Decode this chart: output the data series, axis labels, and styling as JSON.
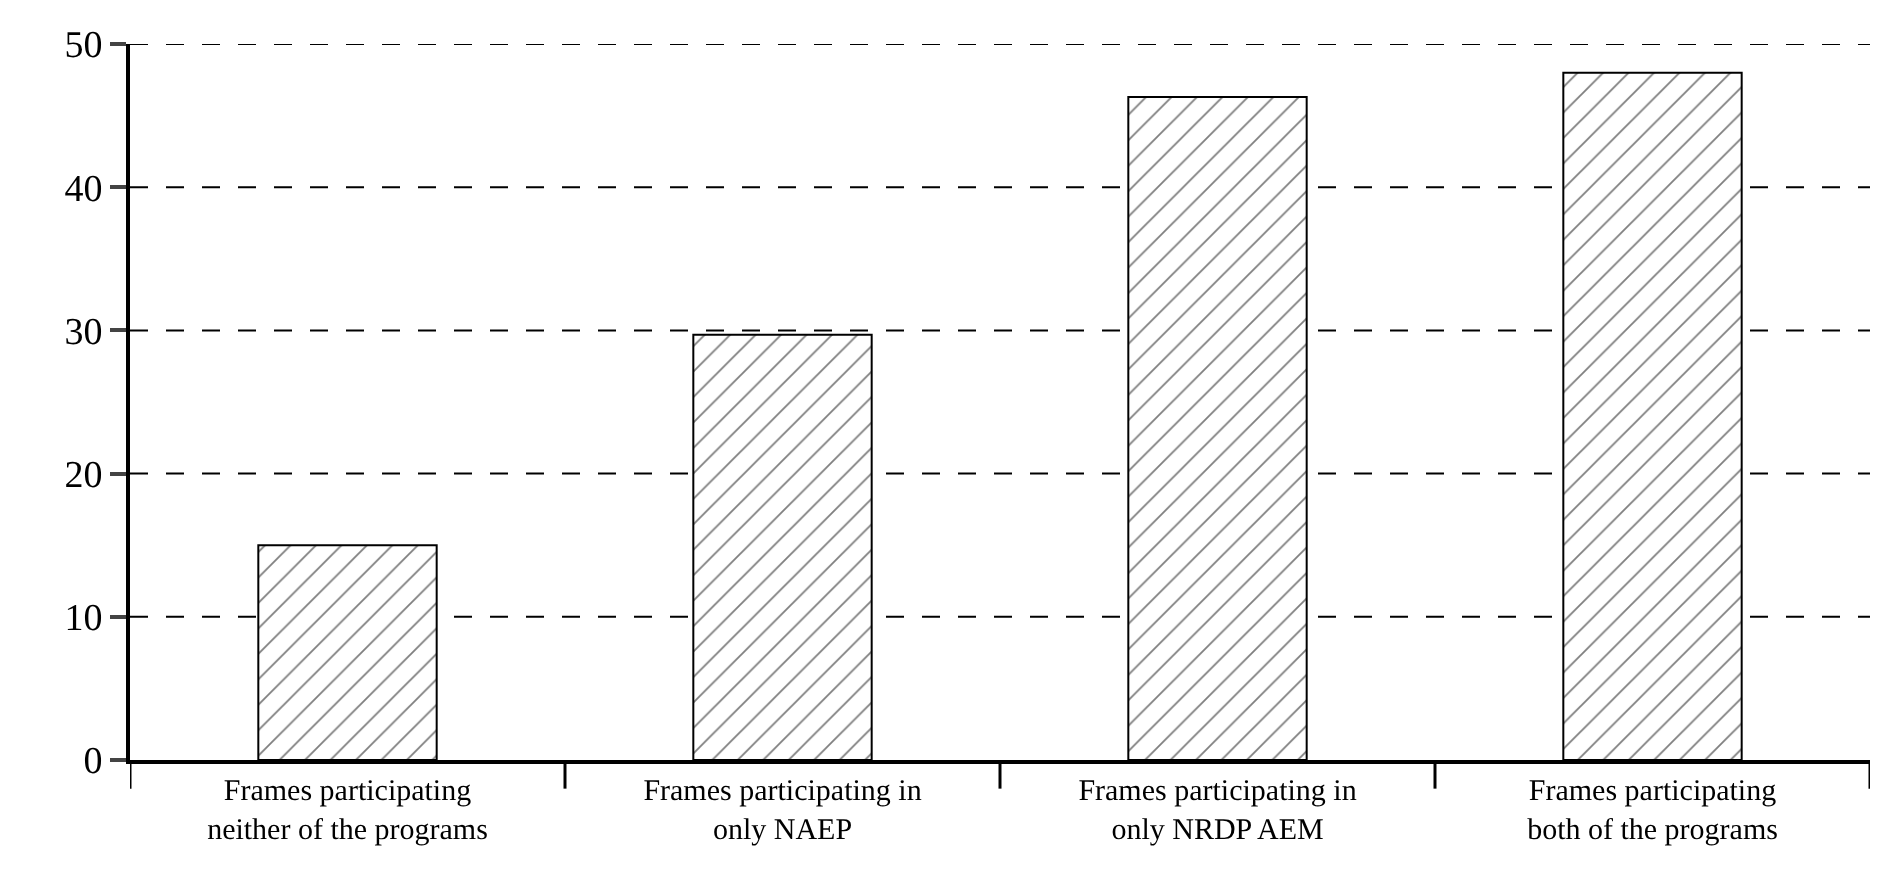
{
  "chart_data": {
    "type": "bar",
    "categories": [
      "Frames participating\nneither of the programs",
      "Frames participating in\nonly NAEP",
      "Frames participating in\nonly NRDP AEM",
      "Frames participating\nboth of the programs"
    ],
    "values": [
      15,
      29.7,
      46.3,
      48
    ],
    "color": "#000000",
    "ylim": [
      0,
      50
    ],
    "yticks": [
      0,
      10,
      20,
      30,
      40,
      50
    ],
    "grid": "y",
    "legend": false
  }
}
